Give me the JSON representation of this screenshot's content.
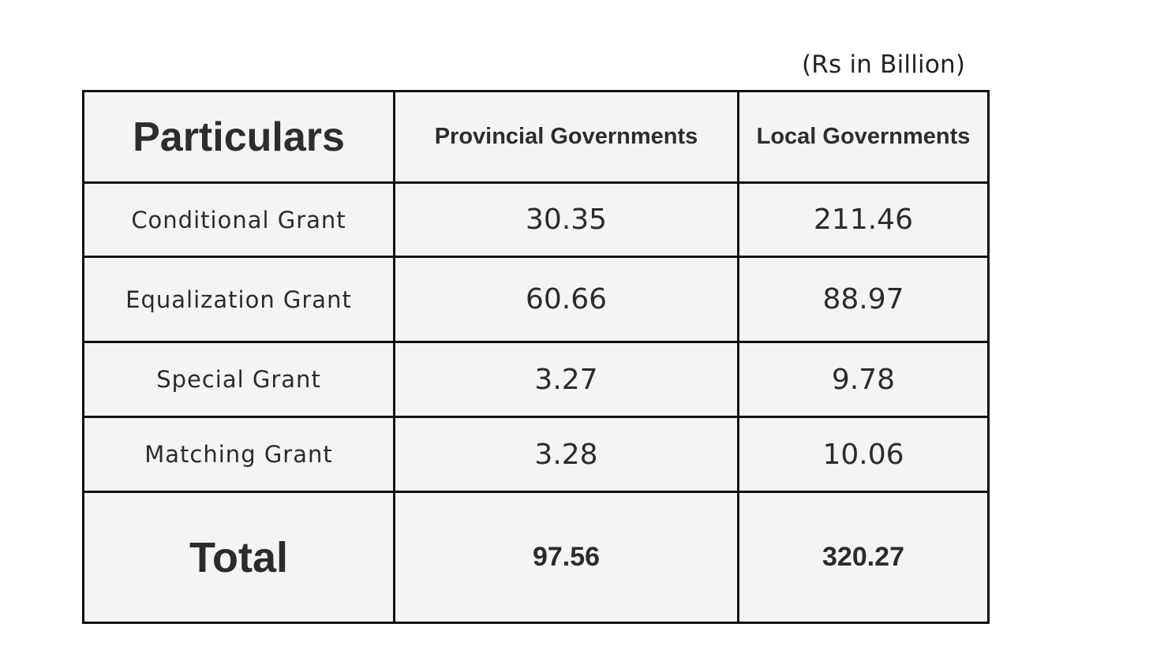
{
  "unit_note": "(Rs in Billion)",
  "table": {
    "headers": [
      "Particulars",
      "Provincial Governments",
      "Local Governments"
    ],
    "rows": [
      [
        "Conditional Grant",
        "30.35",
        "211.46"
      ],
      [
        "Equalization Grant",
        "60.66",
        "88.97"
      ],
      [
        "Special Grant",
        "3.27",
        "9.78"
      ],
      [
        "Matching Grant",
        "3.28",
        "10.06"
      ]
    ],
    "total": [
      "Total",
      "97.56",
      "320.27"
    ]
  },
  "colors": {
    "background": "#ffffff",
    "cell_fill": "#f4f4f4",
    "border": "#111111",
    "text": "#2b2b2b"
  }
}
